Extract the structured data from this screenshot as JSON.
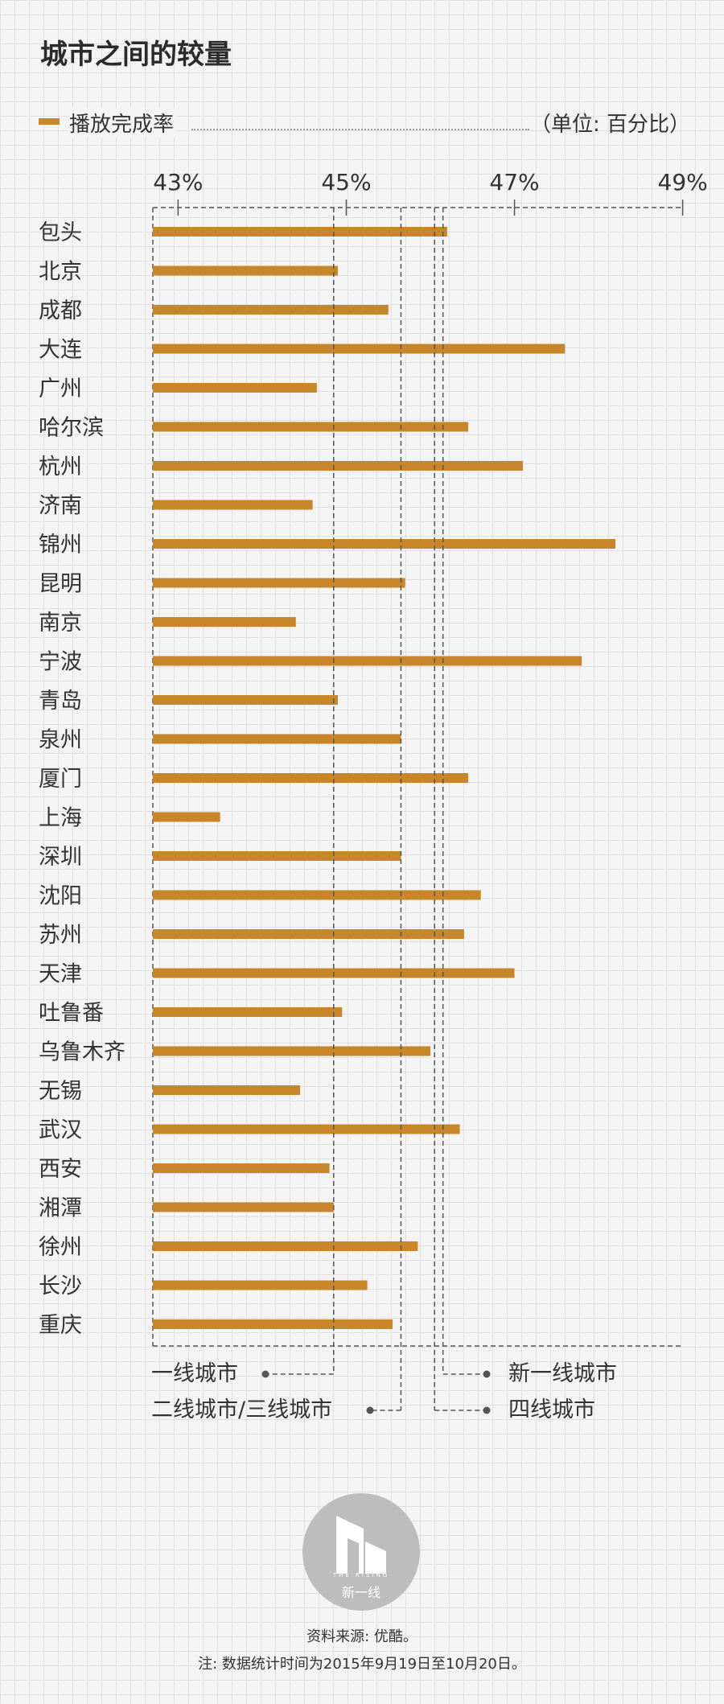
{
  "page": {
    "title": "城市之间的较量",
    "footer_source": "资料来源: 优酷。",
    "footer_note": "注: 数据统计时间为2015年9月19日至10月20日。",
    "logo_text": "新一线",
    "logo_small_text": "THE RISING"
  },
  "colors": {
    "bar": "#c8862a",
    "axis": "#555555",
    "text": "#333333"
  },
  "chart_data": {
    "type": "bar",
    "orientation": "horizontal",
    "title": "城市之间的较量",
    "legend": "播放完成率",
    "unit_label": "（单位: 百分比）",
    "xlim": [
      42.7,
      49.3
    ],
    "ticks": [
      43,
      45,
      47,
      49
    ],
    "tick_labels": [
      "43%",
      "45%",
      "47%",
      "49%"
    ],
    "categories": [
      "包头",
      "北京",
      "成都",
      "大连",
      "广州",
      "哈尔滨",
      "杭州",
      "济南",
      "锦州",
      "昆明",
      "南京",
      "宁波",
      "青岛",
      "泉州",
      "厦门",
      "上海",
      "深圳",
      "沈阳",
      "苏州",
      "天津",
      "吐鲁番",
      "乌鲁木齐",
      "无锡",
      "武汉",
      "西安",
      "湘潭",
      "徐州",
      "长沙",
      "重庆"
    ],
    "values": [
      46.2,
      44.9,
      45.5,
      47.6,
      44.65,
      46.45,
      47.1,
      44.6,
      48.2,
      45.7,
      44.4,
      47.8,
      44.9,
      45.65,
      46.45,
      43.5,
      45.65,
      46.6,
      46.4,
      47.0,
      44.95,
      46.0,
      44.45,
      46.35,
      44.8,
      44.85,
      45.85,
      45.25,
      45.55
    ],
    "reference_lines": [
      {
        "label": "一线城市",
        "value": 44.85
      },
      {
        "label": "二线城市/三线城市",
        "value": 45.65
      },
      {
        "label": "新一线城市",
        "value": 46.15
      },
      {
        "label": "四线城市",
        "value": 46.05
      }
    ]
  }
}
